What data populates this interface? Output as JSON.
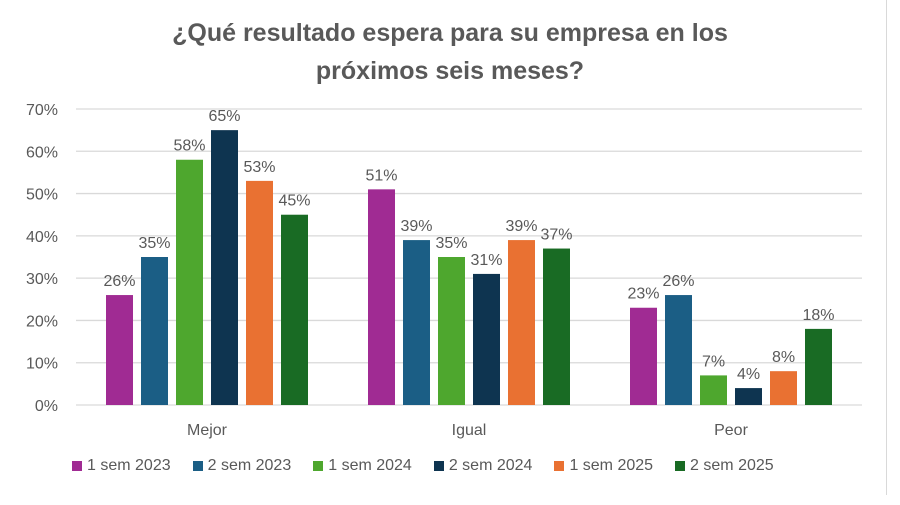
{
  "chart_data": {
    "type": "bar",
    "title": "¿Qué resultado espera para su empresa en los próximos seis meses?",
    "title_lines": [
      "¿Qué resultado espera para su empresa en los",
      "próximos seis meses?"
    ],
    "categories": [
      "Mejor",
      "Igual",
      "Peor"
    ],
    "ylim": [
      0,
      70
    ],
    "yticks": [
      0,
      10,
      20,
      30,
      40,
      50,
      60,
      70
    ],
    "ytick_format": "%",
    "grid": true,
    "legend_position": "bottom",
    "series": [
      {
        "name": "1 sem 2023",
        "color": "#A02B93",
        "values": [
          26,
          51,
          23
        ]
      },
      {
        "name": "2 sem 2023",
        "color": "#1B5E85",
        "values": [
          35,
          39,
          26
        ]
      },
      {
        "name": "1 sem 2024",
        "color": "#4EA72E",
        "values": [
          58,
          35,
          7
        ]
      },
      {
        "name": "2 sem 2024",
        "color": "#0E3450",
        "values": [
          65,
          31,
          4
        ]
      },
      {
        "name": "1 sem 2025",
        "color": "#E97132",
        "values": [
          53,
          39,
          8
        ]
      },
      {
        "name": "2 sem 2025",
        "color": "#196B24",
        "values": [
          45,
          37,
          18
        ]
      }
    ]
  }
}
